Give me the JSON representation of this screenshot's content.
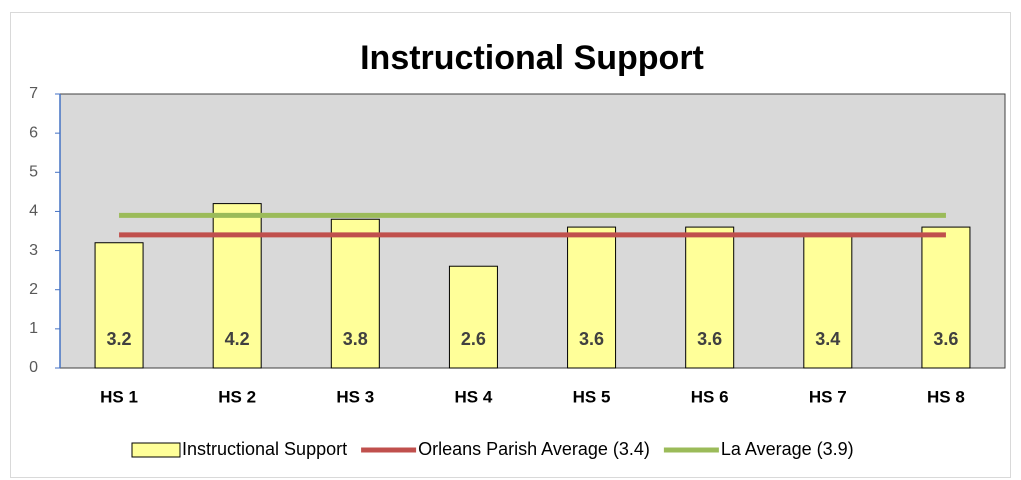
{
  "chart_data": {
    "type": "bar",
    "title": "Instructional Support",
    "categories": [
      "HS 1",
      "HS 2",
      "HS 3",
      "HS 4",
      "HS 5",
      "HS 6",
      "HS 7",
      "HS 8"
    ],
    "series": [
      {
        "name": "Instructional Support",
        "type": "bar",
        "color": "#ffff99",
        "values": [
          3.2,
          4.2,
          3.8,
          2.6,
          3.6,
          3.6,
          3.4,
          3.6
        ]
      },
      {
        "name": "Orleans Parish Average (3.4)",
        "type": "line",
        "color": "#c0504d",
        "values": [
          3.4,
          3.4,
          3.4,
          3.4,
          3.4,
          3.4,
          3.4,
          3.4
        ]
      },
      {
        "name": "La Average (3.9)",
        "type": "line",
        "color": "#9bbb59",
        "values": [
          3.9,
          3.9,
          3.9,
          3.9,
          3.9,
          3.9,
          3.9,
          3.9
        ]
      }
    ],
    "ylim": [
      0,
      7
    ],
    "yticks": [
      0,
      1,
      2,
      3,
      4,
      5,
      6,
      7
    ],
    "grid": false,
    "legend": "bottom",
    "data_labels": true
  }
}
